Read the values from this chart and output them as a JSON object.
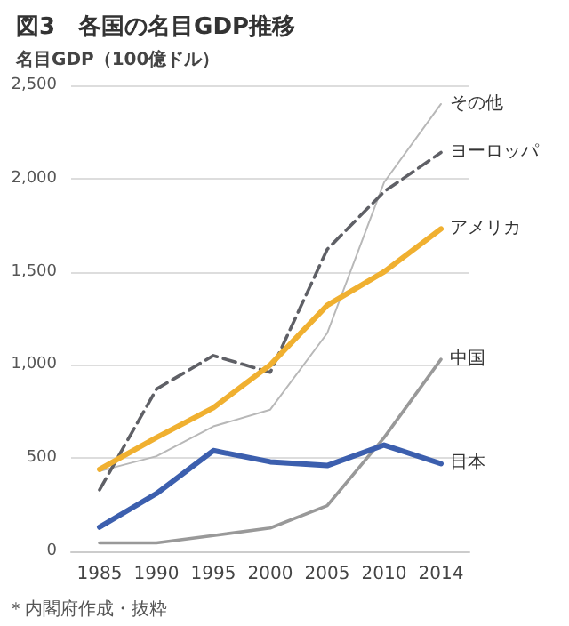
{
  "chart_data": {
    "type": "line",
    "title": "図3　各国の名目GDP推移",
    "ylabel": "名目GDP（100億ドル）",
    "categories": [
      "1985",
      "1990",
      "1995",
      "2000",
      "2005",
      "2010",
      "2014"
    ],
    "series": [
      {
        "name": "その他",
        "color": "#b8b8b8",
        "line_style": "solid",
        "values": [
          430,
          510,
          670,
          760,
          1170,
          1980,
          2400
        ]
      },
      {
        "name": "ヨーロッパ",
        "color": "#5f6066",
        "line_style": "dashed",
        "values": [
          330,
          870,
          1050,
          960,
          1620,
          1930,
          2140
        ]
      },
      {
        "name": "アメリカ",
        "color": "#f0b030",
        "line_style": "solid",
        "values": [
          440,
          610,
          770,
          1000,
          1320,
          1500,
          1730
        ]
      },
      {
        "name": "中国",
        "color": "#999999",
        "line_style": "solid",
        "values": [
          45,
          45,
          85,
          125,
          245,
          610,
          1030
        ]
      },
      {
        "name": "日本",
        "color": "#3c5fae",
        "line_style": "solid",
        "values": [
          130,
          310,
          540,
          480,
          460,
          570,
          470
        ]
      }
    ],
    "ylim": [
      0,
      2500
    ],
    "yticks": [
      {
        "value": 0,
        "label": "0"
      },
      {
        "value": 500,
        "label": "500"
      },
      {
        "value": 1000,
        "label": "1,000"
      },
      {
        "value": 1500,
        "label": "1,500"
      },
      {
        "value": 2000,
        "label": "2,000"
      },
      {
        "value": 2500,
        "label": "2,500"
      }
    ],
    "grid": "y",
    "legend": false,
    "marker": "none",
    "annotations": [
      "＊内閣府作成・抜粋"
    ]
  }
}
